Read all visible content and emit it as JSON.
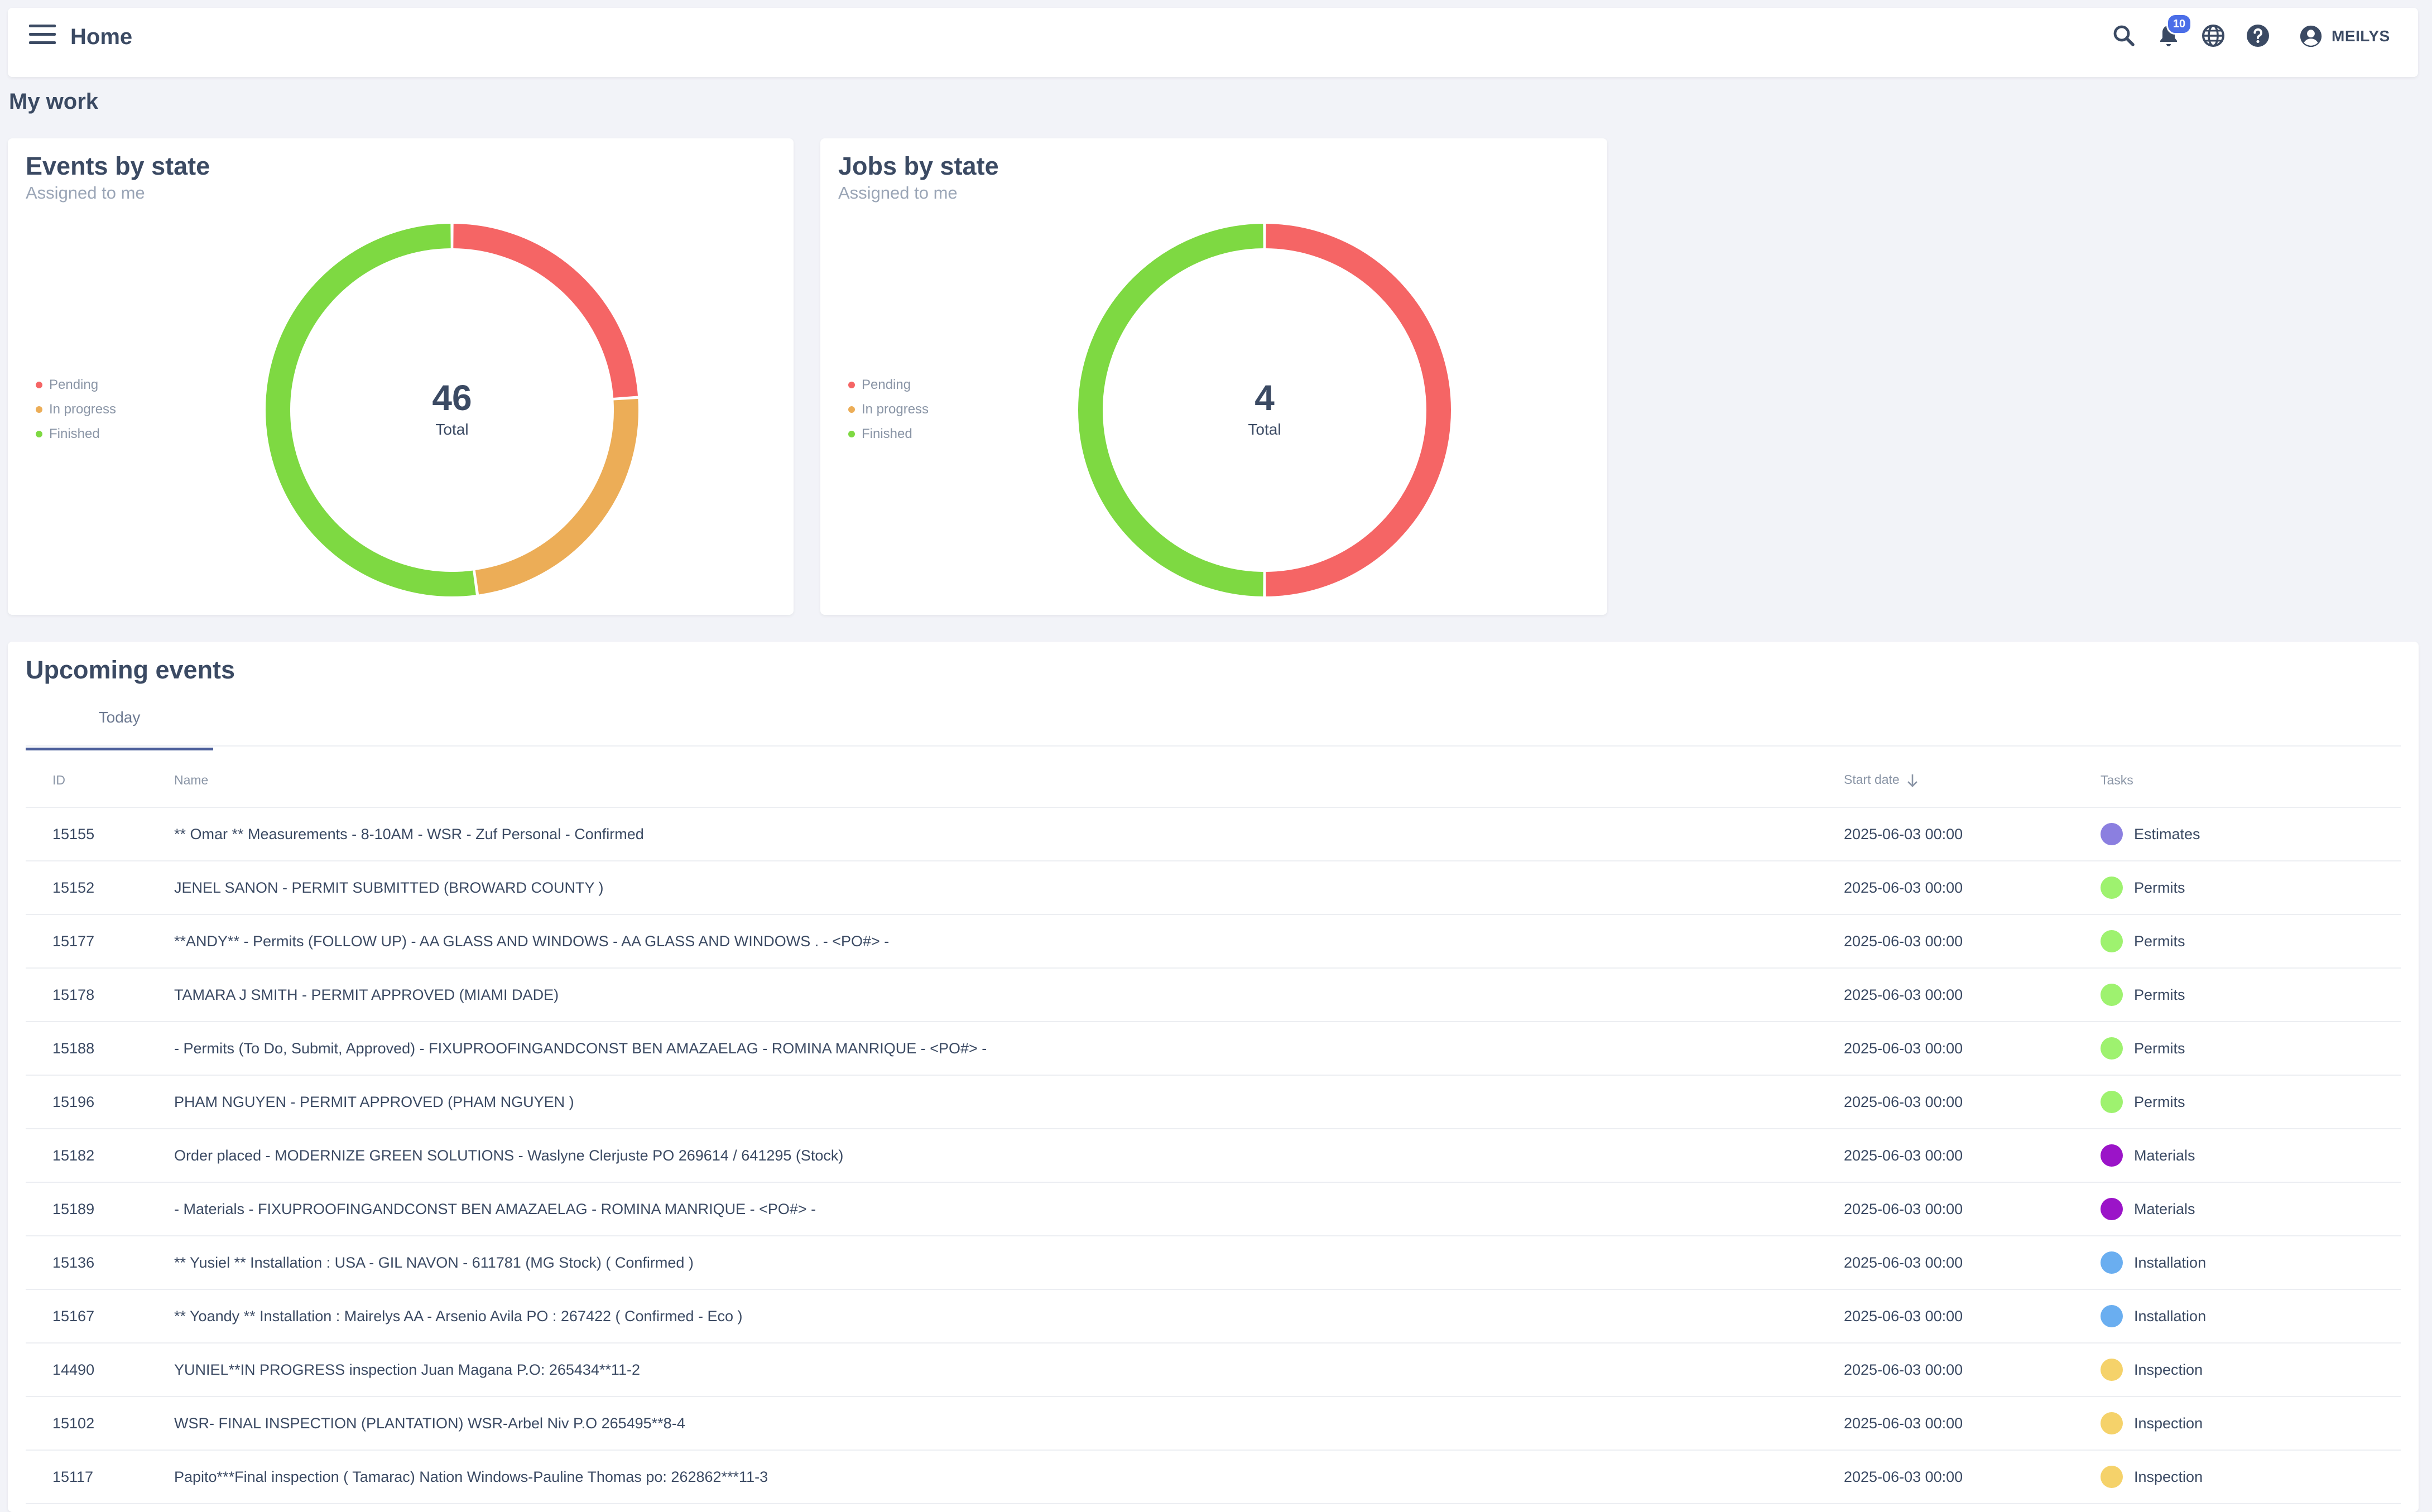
{
  "header": {
    "title": "Home",
    "notification_count": "10",
    "user_name": "MEILYS",
    "icons": [
      "menu-icon",
      "search-icon",
      "bell-icon",
      "globe-icon",
      "help-icon",
      "account-icon"
    ]
  },
  "section_title": "My work",
  "events_card": {
    "title": "Events by state",
    "subtitle": "Assigned to me",
    "total": "46",
    "total_label": "Total",
    "legend": [
      {
        "label": "Pending",
        "color": "#f56565"
      },
      {
        "label": "In progress",
        "color": "#ecad57"
      },
      {
        "label": "Finished",
        "color": "#7ed942"
      }
    ]
  },
  "jobs_card": {
    "title": "Jobs by state",
    "subtitle": "Assigned to me",
    "total": "4",
    "total_label": "Total",
    "legend": [
      {
        "label": "Pending",
        "color": "#f56565"
      },
      {
        "label": "In progress",
        "color": "#ecad57"
      },
      {
        "label": "Finished",
        "color": "#7ed942"
      }
    ]
  },
  "chart_data": [
    {
      "type": "pie",
      "title": "Events by state",
      "subtitle": "Assigned to me",
      "categories": [
        "Pending",
        "In progress",
        "Finished"
      ],
      "values": [
        11,
        11,
        24
      ],
      "colors": [
        "#f56565",
        "#ecad57",
        "#7ed942"
      ],
      "donut": true,
      "legend": "left"
    },
    {
      "type": "pie",
      "title": "Jobs by state",
      "subtitle": "Assigned to me",
      "categories": [
        "Pending",
        "In progress",
        "Finished"
      ],
      "values": [
        2,
        0,
        2
      ],
      "colors": [
        "#f56565",
        "#ecad57",
        "#7ed942"
      ],
      "donut": true,
      "legend": "left"
    }
  ],
  "upcoming": {
    "title": "Upcoming events",
    "tab_today": "Today",
    "columns": {
      "id": "ID",
      "name": "Name",
      "start_date": "Start date",
      "tasks": "Tasks"
    },
    "rows": [
      {
        "id": "15155",
        "name": "** Omar ** Measurements - 8-10AM - WSR - Zuf Personal - Confirmed",
        "start": "2025-06-03 00:00",
        "task": "Estimates",
        "color": "#8b7fe0"
      },
      {
        "id": "15152",
        "name": "JENEL SANON - PERMIT SUBMITTED (BROWARD COUNTY )",
        "start": "2025-06-03 00:00",
        "task": "Permits",
        "color": "#9ef26f"
      },
      {
        "id": "15177",
        "name": "**ANDY** - Permits (FOLLOW UP) - AA GLASS AND WINDOWS - AA GLASS AND WINDOWS . - <PO#> -",
        "start": "2025-06-03 00:00",
        "task": "Permits",
        "color": "#9ef26f"
      },
      {
        "id": "15178",
        "name": "TAMARA J SMITH - PERMIT APPROVED (MIAMI DADE)",
        "start": "2025-06-03 00:00",
        "task": "Permits",
        "color": "#9ef26f"
      },
      {
        "id": "15188",
        "name": "- Permits (To Do, Submit, Approved) - FIXUPROOFINGANDCONST BEN AMAZAELAG - ROMINA MANRIQUE - <PO#> -",
        "start": "2025-06-03 00:00",
        "task": "Permits",
        "color": "#9ef26f"
      },
      {
        "id": "15196",
        "name": "PHAM NGUYEN - PERMIT APPROVED (PHAM NGUYEN )",
        "start": "2025-06-03 00:00",
        "task": "Permits",
        "color": "#9ef26f"
      },
      {
        "id": "15182",
        "name": "Order placed - MODERNIZE GREEN SOLUTIONS - Waslyne Clerjuste PO 269614 / 641295 (Stock)",
        "start": "2025-06-03 00:00",
        "task": "Materials",
        "color": "#9b14c8"
      },
      {
        "id": "15189",
        "name": "- Materials - FIXUPROOFINGANDCONST BEN AMAZAELAG - ROMINA MANRIQUE - <PO#> -",
        "start": "2025-06-03 00:00",
        "task": "Materials",
        "color": "#9b14c8"
      },
      {
        "id": "15136",
        "name": "** Yusiel ** Installation : USA - GIL NAVON - 611781 (MG Stock) ( Confirmed )",
        "start": "2025-06-03 00:00",
        "task": "Installation",
        "color": "#6aaef0"
      },
      {
        "id": "15167",
        "name": "** Yoandy ** Installation : Mairelys AA - Arsenio Avila PO : 267422 ( Confirmed - Eco )",
        "start": "2025-06-03 00:00",
        "task": "Installation",
        "color": "#6aaef0"
      },
      {
        "id": "14490",
        "name": "YUNIEL**IN PROGRESS inspection Juan Magana P.O: 265434**11-2",
        "start": "2025-06-03 00:00",
        "task": "Inspection",
        "color": "#f5d26a"
      },
      {
        "id": "15102",
        "name": "WSR- FINAL INSPECTION (PLANTATION) WSR-Arbel Niv P.O 265495**8-4",
        "start": "2025-06-03 00:00",
        "task": "Inspection",
        "color": "#f5d26a"
      },
      {
        "id": "15117",
        "name": "Papito***Final inspection ( Tamarac) Nation Windows-Pauline Thomas po: 262862***11-3",
        "start": "2025-06-03 00:00",
        "task": "Inspection",
        "color": "#f5d26a"
      }
    ]
  }
}
